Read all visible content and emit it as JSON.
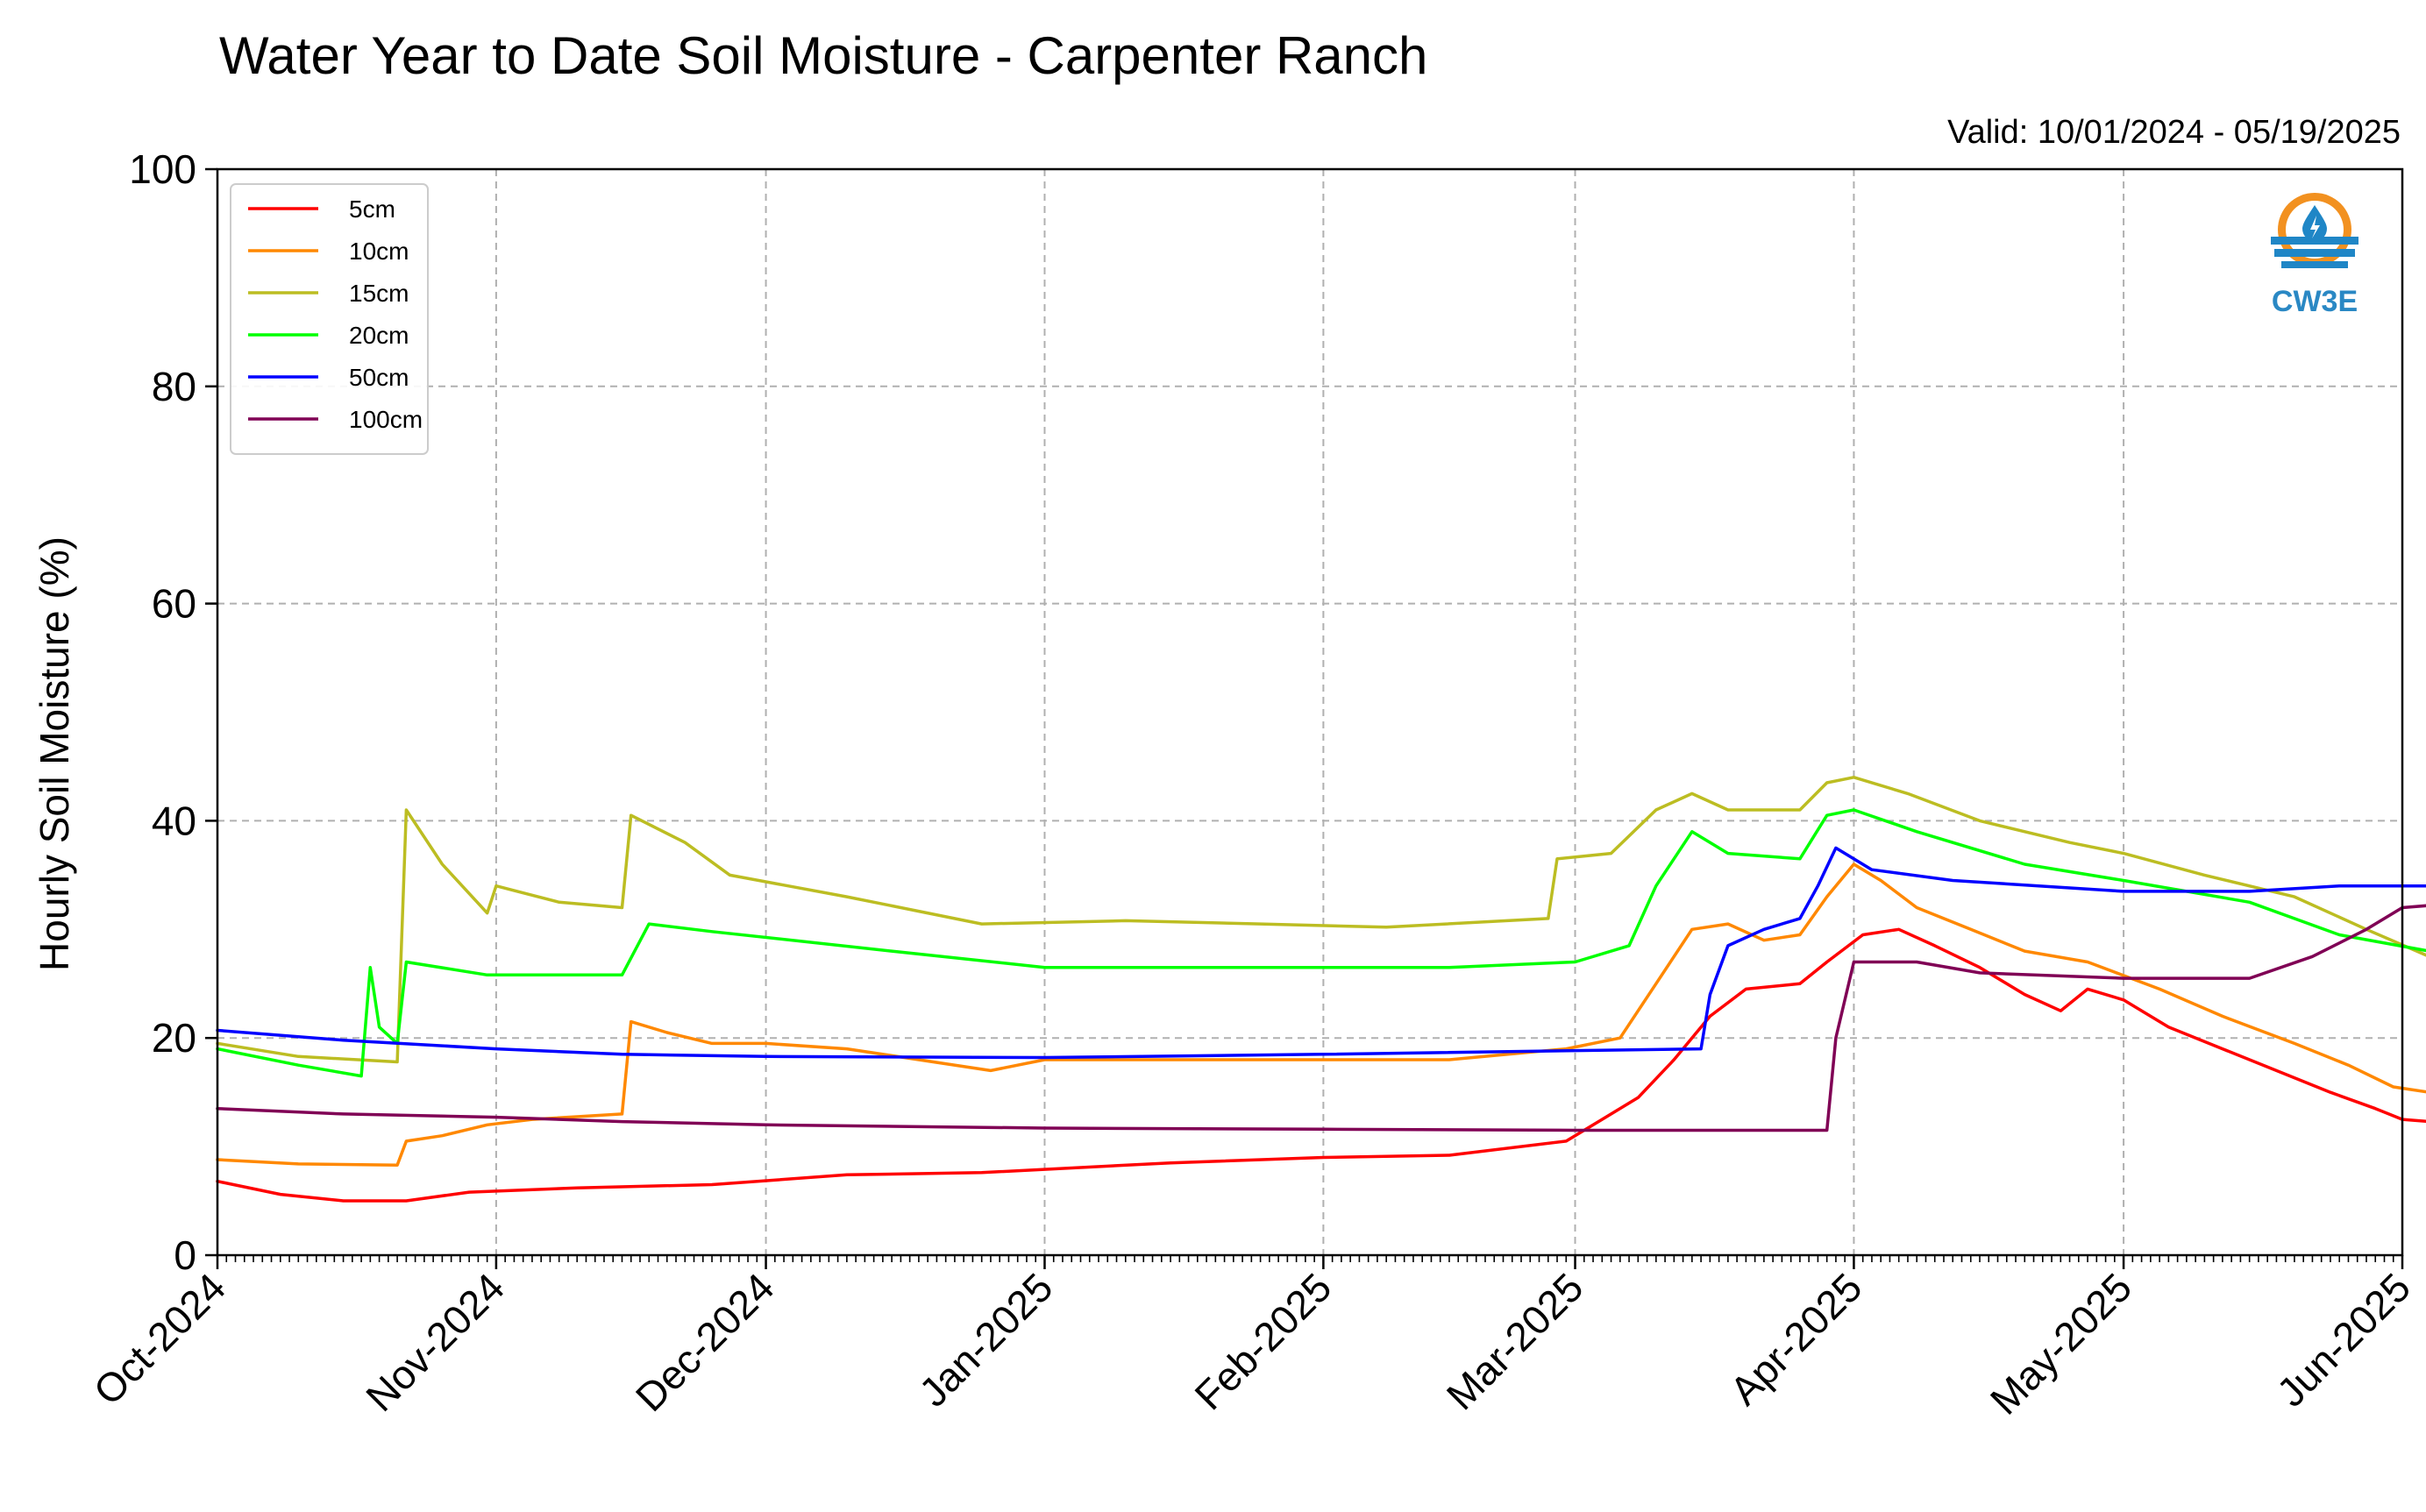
{
  "chart_data": {
    "type": "line",
    "title": "Water Year to Date Soil Moisture - Carpenter Ranch",
    "subtitle": "Valid: 10/01/2024 - 05/19/2025",
    "ylabel": "Hourly Soil Moisture (%)",
    "xlabel": "",
    "xlim": [
      "2024-10-01",
      "2025-06-01"
    ],
    "ylim": [
      0,
      100
    ],
    "yticks": [
      0,
      20,
      40,
      60,
      80,
      100
    ],
    "xticks": [
      {
        "date": "2024-10-01",
        "label": "Oct-2024"
      },
      {
        "date": "2024-11-01",
        "label": "Nov-2024"
      },
      {
        "date": "2024-12-01",
        "label": "Dec-2024"
      },
      {
        "date": "2025-01-01",
        "label": "Jan-2025"
      },
      {
        "date": "2025-02-01",
        "label": "Feb-2025"
      },
      {
        "date": "2025-03-01",
        "label": "Mar-2025"
      },
      {
        "date": "2025-04-01",
        "label": "Apr-2025"
      },
      {
        "date": "2025-05-01",
        "label": "May-2025"
      },
      {
        "date": "2025-06-01",
        "label": "Jun-2025"
      }
    ],
    "grid": true,
    "legend_position": "top-left",
    "series": [
      {
        "name": "5cm",
        "color": "#ff0000",
        "points": [
          [
            "2024-10-01",
            6.8
          ],
          [
            "2024-10-08",
            5.6
          ],
          [
            "2024-10-15",
            5.0
          ],
          [
            "2024-10-22",
            5.0
          ],
          [
            "2024-10-29",
            5.8
          ],
          [
            "2024-11-10",
            6.2
          ],
          [
            "2024-11-25",
            6.5
          ],
          [
            "2024-12-10",
            7.4
          ],
          [
            "2024-12-25",
            7.6
          ],
          [
            "2025-01-15",
            8.5
          ],
          [
            "2025-02-01",
            9.0
          ],
          [
            "2025-02-15",
            9.2
          ],
          [
            "2025-02-28",
            10.5
          ],
          [
            "2025-03-04",
            12.5
          ],
          [
            "2025-03-08",
            14.5
          ],
          [
            "2025-03-12",
            18.0
          ],
          [
            "2025-03-16",
            22.0
          ],
          [
            "2025-03-20",
            24.5
          ],
          [
            "2025-03-26",
            25.0
          ],
          [
            "2025-03-29",
            27.0
          ],
          [
            "2025-04-02",
            29.5
          ],
          [
            "2025-04-06",
            30.0
          ],
          [
            "2025-04-10",
            28.5
          ],
          [
            "2025-04-15",
            26.5
          ],
          [
            "2025-04-20",
            24.0
          ],
          [
            "2025-04-24",
            22.5
          ],
          [
            "2025-04-27",
            24.5
          ],
          [
            "2025-05-01",
            23.5
          ],
          [
            "2025-05-06",
            21.0
          ],
          [
            "2025-05-12",
            19.0
          ],
          [
            "2025-05-18",
            17.0
          ],
          [
            "2025-05-24",
            15.0
          ],
          [
            "2025-05-29",
            13.5
          ],
          [
            "2025-06-01",
            12.5
          ],
          [
            "2025-06-04",
            12.3
          ]
        ]
      },
      {
        "name": "10cm",
        "color": "#ff8800",
        "points": [
          [
            "2024-10-01",
            8.8
          ],
          [
            "2024-10-10",
            8.4
          ],
          [
            "2024-10-21",
            8.3
          ],
          [
            "2024-10-22",
            10.5
          ],
          [
            "2024-10-26",
            11.0
          ],
          [
            "2024-10-31",
            12.0
          ],
          [
            "2024-11-05",
            12.5
          ],
          [
            "2024-11-15",
            13.0
          ],
          [
            "2024-11-16",
            21.5
          ],
          [
            "2024-11-20",
            20.5
          ],
          [
            "2024-11-25",
            19.5
          ],
          [
            "2024-12-01",
            19.5
          ],
          [
            "2024-12-10",
            19.0
          ],
          [
            "2024-12-18",
            18.0
          ],
          [
            "2024-12-26",
            17.0
          ],
          [
            "2025-01-01",
            18.0
          ],
          [
            "2025-01-15",
            18.0
          ],
          [
            "2025-02-01",
            18.0
          ],
          [
            "2025-02-15",
            18.0
          ],
          [
            "2025-02-28",
            19.0
          ],
          [
            "2025-03-06",
            20.0
          ],
          [
            "2025-03-10",
            25.0
          ],
          [
            "2025-03-14",
            30.0
          ],
          [
            "2025-03-18",
            30.5
          ],
          [
            "2025-03-22",
            29.0
          ],
          [
            "2025-03-26",
            29.5
          ],
          [
            "2025-03-29",
            33.0
          ],
          [
            "2025-04-01",
            36.0
          ],
          [
            "2025-04-04",
            34.5
          ],
          [
            "2025-04-08",
            32.0
          ],
          [
            "2025-04-14",
            30.0
          ],
          [
            "2025-04-20",
            28.0
          ],
          [
            "2025-04-27",
            27.0
          ],
          [
            "2025-05-05",
            24.5
          ],
          [
            "2025-05-12",
            22.0
          ],
          [
            "2025-05-20",
            19.5
          ],
          [
            "2025-05-26",
            17.5
          ],
          [
            "2025-05-31",
            15.5
          ],
          [
            "2025-06-04",
            15.0
          ]
        ]
      },
      {
        "name": "15cm",
        "color": "#bcbd22",
        "points": [
          [
            "2024-10-01",
            19.5
          ],
          [
            "2024-10-10",
            18.3
          ],
          [
            "2024-10-21",
            17.8
          ],
          [
            "2024-10-22",
            41.0
          ],
          [
            "2024-10-26",
            36.0
          ],
          [
            "2024-10-31",
            31.5
          ],
          [
            "2024-11-01",
            34.0
          ],
          [
            "2024-11-08",
            32.5
          ],
          [
            "2024-11-15",
            32.0
          ],
          [
            "2024-11-16",
            40.5
          ],
          [
            "2024-11-22",
            38.0
          ],
          [
            "2024-11-27",
            35.0
          ],
          [
            "2024-12-10",
            33.0
          ],
          [
            "2024-12-25",
            30.5
          ],
          [
            "2025-01-10",
            30.8
          ],
          [
            "2025-01-25",
            30.5
          ],
          [
            "2025-02-08",
            30.2
          ],
          [
            "2025-02-26",
            31.0
          ],
          [
            "2025-02-27",
            36.5
          ],
          [
            "2025-03-05",
            37.0
          ],
          [
            "2025-03-10",
            41.0
          ],
          [
            "2025-03-14",
            42.5
          ],
          [
            "2025-03-18",
            41.0
          ],
          [
            "2025-03-26",
            41.0
          ],
          [
            "2025-03-29",
            43.5
          ],
          [
            "2025-04-01",
            44.0
          ],
          [
            "2025-04-07",
            42.5
          ],
          [
            "2025-04-15",
            40.0
          ],
          [
            "2025-04-25",
            38.0
          ],
          [
            "2025-05-01",
            37.0
          ],
          [
            "2025-05-10",
            35.0
          ],
          [
            "2025-05-20",
            33.0
          ],
          [
            "2025-05-28",
            30.0
          ],
          [
            "2025-06-04",
            27.5
          ]
        ]
      },
      {
        "name": "20cm",
        "color": "#00ff00",
        "points": [
          [
            "2024-10-01",
            19.0
          ],
          [
            "2024-10-10",
            17.5
          ],
          [
            "2024-10-17",
            16.5
          ],
          [
            "2024-10-18",
            26.5
          ],
          [
            "2024-10-19",
            21.0
          ],
          [
            "2024-10-21",
            19.5
          ],
          [
            "2024-10-22",
            27.0
          ],
          [
            "2024-10-31",
            25.8
          ],
          [
            "2024-11-15",
            25.8
          ],
          [
            "2024-11-18",
            30.5
          ],
          [
            "2024-11-25",
            29.8
          ],
          [
            "2024-12-15",
            28.0
          ],
          [
            "2025-01-01",
            26.5
          ],
          [
            "2025-02-15",
            26.5
          ],
          [
            "2025-03-01",
            27.0
          ],
          [
            "2025-03-07",
            28.5
          ],
          [
            "2025-03-10",
            34.0
          ],
          [
            "2025-03-14",
            39.0
          ],
          [
            "2025-03-18",
            37.0
          ],
          [
            "2025-03-26",
            36.5
          ],
          [
            "2025-03-29",
            40.5
          ],
          [
            "2025-04-01",
            41.0
          ],
          [
            "2025-04-08",
            39.0
          ],
          [
            "2025-04-20",
            36.0
          ],
          [
            "2025-05-01",
            34.5
          ],
          [
            "2025-05-15",
            32.5
          ],
          [
            "2025-05-25",
            29.5
          ],
          [
            "2025-06-04",
            28.0
          ]
        ]
      },
      {
        "name": "50cm",
        "color": "#0000ff",
        "points": [
          [
            "2024-10-01",
            20.7
          ],
          [
            "2024-10-15",
            19.8
          ],
          [
            "2024-11-01",
            19.0
          ],
          [
            "2024-11-15",
            18.5
          ],
          [
            "2024-12-01",
            18.3
          ],
          [
            "2025-01-01",
            18.2
          ],
          [
            "2025-02-01",
            18.5
          ],
          [
            "2025-03-15",
            19.0
          ],
          [
            "2025-03-16",
            24.0
          ],
          [
            "2025-03-18",
            28.5
          ],
          [
            "2025-03-22",
            30.0
          ],
          [
            "2025-03-26",
            31.0
          ],
          [
            "2025-03-28",
            34.0
          ],
          [
            "2025-03-30",
            37.5
          ],
          [
            "2025-04-03",
            35.5
          ],
          [
            "2025-04-12",
            34.5
          ],
          [
            "2025-05-01",
            33.5
          ],
          [
            "2025-05-15",
            33.5
          ],
          [
            "2025-05-25",
            34.0
          ],
          [
            "2025-06-04",
            34.0
          ]
        ]
      },
      {
        "name": "100cm",
        "color": "#800055",
        "points": [
          [
            "2024-10-01",
            13.5
          ],
          [
            "2024-10-15",
            13.0
          ],
          [
            "2024-11-01",
            12.7
          ],
          [
            "2024-11-15",
            12.3
          ],
          [
            "2024-12-01",
            12.0
          ],
          [
            "2025-01-01",
            11.7
          ],
          [
            "2025-02-01",
            11.6
          ],
          [
            "2025-03-01",
            11.5
          ],
          [
            "2025-03-15",
            11.5
          ],
          [
            "2025-03-29",
            11.5
          ],
          [
            "2025-03-30",
            20.0
          ],
          [
            "2025-04-01",
            27.0
          ],
          [
            "2025-04-08",
            27.0
          ],
          [
            "2025-04-15",
            26.0
          ],
          [
            "2025-05-01",
            25.5
          ],
          [
            "2025-05-15",
            25.5
          ],
          [
            "2025-05-22",
            27.5
          ],
          [
            "2025-05-28",
            30.0
          ],
          [
            "2025-06-01",
            32.0
          ],
          [
            "2025-06-04",
            32.2
          ]
        ]
      }
    ]
  },
  "logo": {
    "text": "CW3E",
    "color_ring": "#f29120",
    "color_wave": "#1f86c6",
    "color_text": "#2a88c4"
  }
}
